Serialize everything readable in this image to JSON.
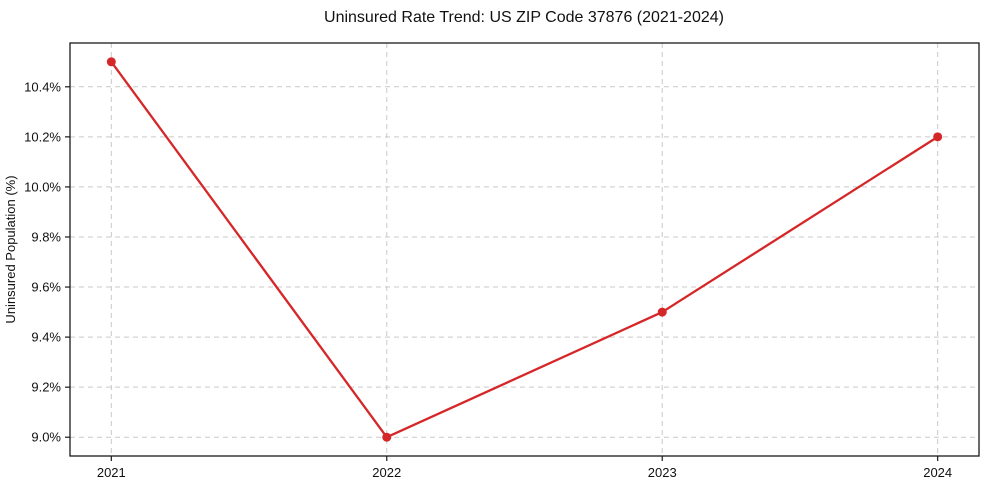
{
  "chart_data": {
    "type": "line",
    "title": "Uninsured Rate Trend: US ZIP Code 37876 (2021-2024)",
    "xlabel": "",
    "ylabel": "Uninsured Population (%)",
    "x": [
      2021,
      2022,
      2023,
      2024
    ],
    "x_tick_labels": [
      "2021",
      "2022",
      "2023",
      "2024"
    ],
    "values": [
      10.5,
      9.0,
      9.5,
      10.2
    ],
    "y_ticks": [
      9.0,
      9.2,
      9.4,
      9.6,
      9.8,
      10.0,
      10.2,
      10.4
    ],
    "y_tick_labels": [
      "9.0%",
      "9.2%",
      "9.4%",
      "9.6%",
      "9.8%",
      "10.0%",
      "10.2%",
      "10.4%"
    ],
    "xlim": [
      2020.85,
      2024.15
    ],
    "ylim": [
      8.925,
      10.575
    ],
    "grid": true,
    "grid_style": "dashed",
    "legend": "none",
    "colors": {
      "line": "#d62728",
      "marker": "#d62728",
      "grid": "#c9c9c9",
      "axis": "#1a1a1a",
      "text": "#111111",
      "background": "#ffffff"
    }
  }
}
